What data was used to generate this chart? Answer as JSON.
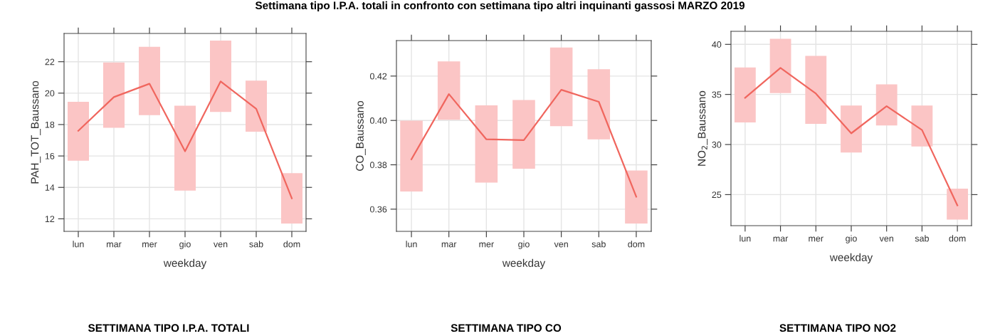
{
  "chart_data": [
    {
      "type": "line",
      "title": "Settimana tipo I.P.A. totali in confronto con settimana tipo altri inquinanti gassosi MARZO 2019",
      "xlabel": "weekday",
      "ylabel": "PAH_TOT_Baussano",
      "categories": [
        "lun",
        "mar",
        "mer",
        "gio",
        "ven",
        "sab",
        "dom"
      ],
      "series": [
        {
          "type": "bar",
          "color": "#fbc5c5",
          "base": [
            15.7,
            17.8,
            18.6,
            13.8,
            18.8,
            17.55,
            11.7
          ],
          "values": [
            3.75,
            4.15,
            4.35,
            5.4,
            4.55,
            3.25,
            3.2
          ]
        },
        {
          "color": "#f0665e",
          "values": [
            17.6,
            19.75,
            20.6,
            16.3,
            20.75,
            19.0,
            13.3
          ]
        }
      ],
      "ylim": [
        11.2,
        23.8
      ],
      "yticks": [
        12,
        14,
        16,
        18,
        20,
        22
      ],
      "grid": true,
      "annotations": [
        "SETTIMANA TIPO I.P.A. TOTALI"
      ]
    },
    {
      "type": "line",
      "xlabel": "weekday",
      "ylabel": "CO_Baussano",
      "categories": [
        "lun",
        "mar",
        "mer",
        "gio",
        "ven",
        "sab",
        "dom"
      ],
      "series": [
        {
          "type": "bar",
          "color": "#fbc5c5",
          "base": [
            0.368,
            0.4003,
            0.372,
            0.3782,
            0.3974,
            0.3915,
            0.3535
          ],
          "values": [
            0.0319,
            0.0263,
            0.0348,
            0.031,
            0.0355,
            0.0316,
            0.0239
          ]
        },
        {
          "color": "#f0665e",
          "values": [
            0.3825,
            0.4119,
            0.3915,
            0.3911,
            0.4138,
            0.4084,
            0.3656
          ]
        }
      ],
      "ylim": [
        0.35,
        0.436
      ],
      "yticks": [
        {
          "value": 0.36,
          "label": "0.36"
        },
        {
          "value": 0.38,
          "label": "0.38"
        },
        {
          "value": 0.4,
          "label": "0.40"
        },
        {
          "value": 0.42,
          "label": "0.42"
        }
      ],
      "grid": true,
      "annotations": [
        "SETTIMANA TIPO CO"
      ]
    },
    {
      "type": "line",
      "xlabel": "weekday",
      "ylabel": "NO$_{2}$_Baussano",
      "categories": [
        "lun",
        "mar",
        "mer",
        "gio",
        "ven",
        "sab",
        "dom"
      ],
      "series": [
        {
          "type": "bar",
          "color": "#fbc5c5",
          "base": [
            32.2,
            35.13,
            32.07,
            29.2,
            31.9,
            29.8,
            22.5
          ],
          "values": [
            5.5,
            5.42,
            6.77,
            4.7,
            4.1,
            4.1,
            3.1
          ]
        },
        {
          "color": "#f0665e",
          "values": [
            34.66,
            37.65,
            35.09,
            31.12,
            33.83,
            31.45,
            23.93
          ]
        }
      ],
      "ylim": [
        21.9,
        41.3
      ],
      "yticks": [
        25,
        30,
        35,
        40
      ],
      "grid": true,
      "annotations": [
        "SETTIMANA TIPO NO2"
      ]
    }
  ]
}
